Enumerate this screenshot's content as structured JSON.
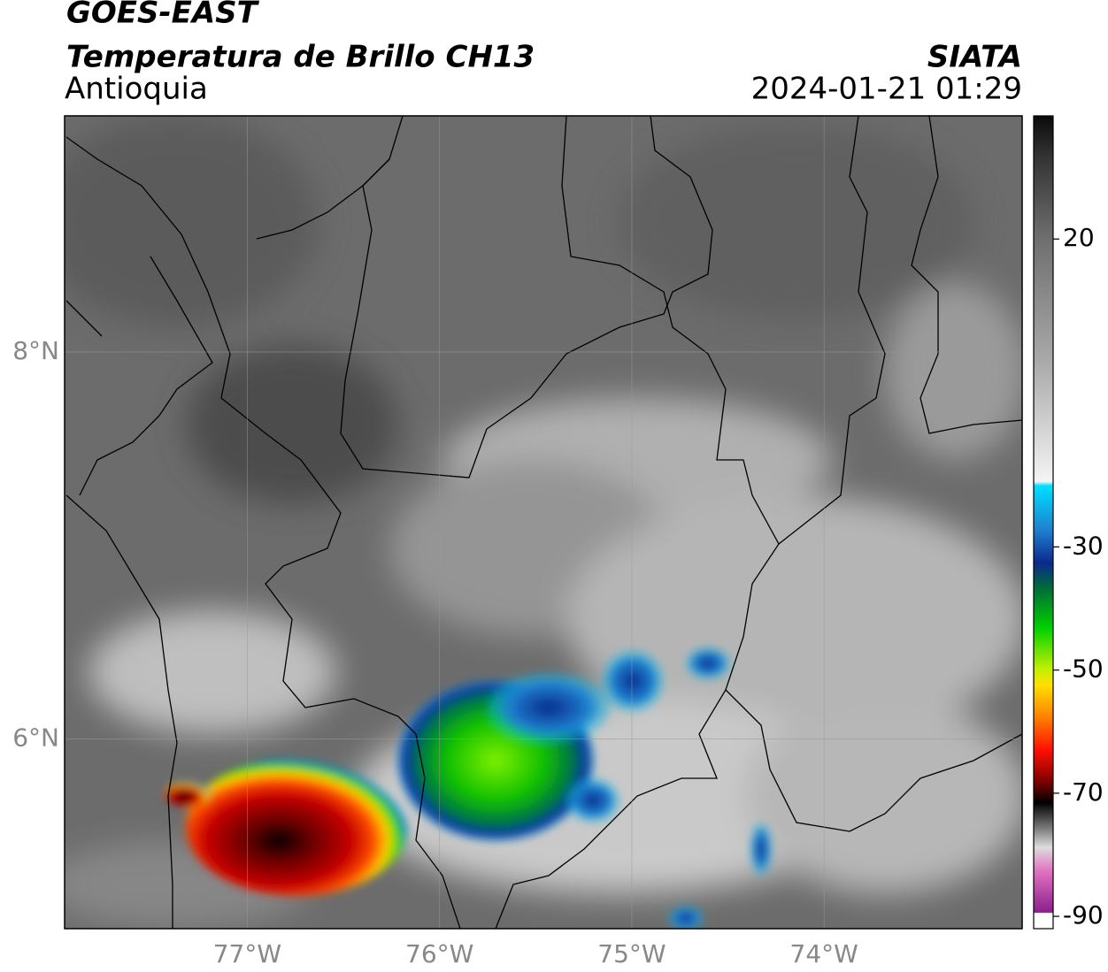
{
  "map_data": {
    "title": "GOES-EAST",
    "subtitle": "Temperatura de Brillo CH13",
    "region": "Antioquia",
    "source": "SIATA",
    "datetime": "2024-01-21 01:29",
    "xlim": [
      -77.95,
      -72.97
    ],
    "ylim": [
      5.02,
      9.22
    ],
    "xticks": [
      {
        "value": -77,
        "label": "77°W"
      },
      {
        "value": -76,
        "label": "76°W"
      },
      {
        "value": -75,
        "label": "75°W"
      },
      {
        "value": -74,
        "label": "74°W"
      }
    ],
    "yticks": [
      {
        "value": 6,
        "label": "6°N"
      },
      {
        "value": 8,
        "label": "8°N"
      }
    ],
    "grid": true,
    "colorbar": {
      "lim": [
        -92,
        40
      ],
      "ticks": [
        -90,
        -70,
        -50,
        -30,
        20
      ]
    }
  }
}
